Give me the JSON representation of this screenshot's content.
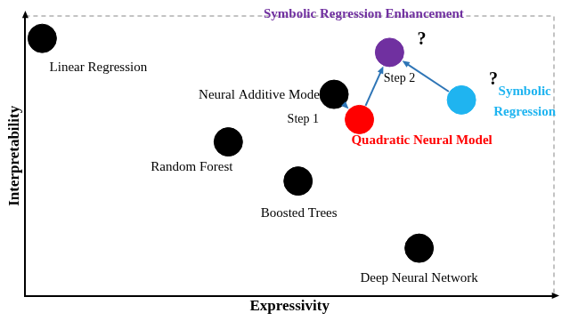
{
  "chart_data": {
    "type": "scatter",
    "xlabel": "Expressivity",
    "ylabel": "Interpretability",
    "xlim": [
      0,
      10
    ],
    "ylim": [
      0,
      10
    ],
    "tick_labels": false,
    "grid": false,
    "points": [
      {
        "label": "Linear Regression",
        "x": 0.32,
        "y": 9.2,
        "color": "#000000"
      },
      {
        "label": "Neural Additive Model",
        "x": 5.84,
        "y": 7.2,
        "color": "#000000"
      },
      {
        "label": "Random Forest",
        "x": 3.84,
        "y": 5.5,
        "color": "#000000"
      },
      {
        "label": "Boosted Trees",
        "x": 5.16,
        "y": 4.1,
        "color": "#000000"
      },
      {
        "label": "Deep Neural Network",
        "x": 7.45,
        "y": 1.7,
        "color": "#000000"
      },
      {
        "label": "Quadratic Neural Model",
        "x": 6.32,
        "y": 6.3,
        "color": "#ff0000"
      },
      {
        "label": "Symbolic Regression",
        "x": 8.25,
        "y": 7.0,
        "color": "#1fb4f0"
      },
      {
        "label": "Symbolic Regression Enhancement",
        "x": 6.89,
        "y": 8.7,
        "color": "#7030a0"
      }
    ],
    "arrows": [
      {
        "from": "Neural Additive Model",
        "to": "Quadratic Neural Model",
        "label": "Step 1"
      },
      {
        "from": "Quadratic Neural Model",
        "to": "Symbolic Regression Enhancement",
        "label": "Step 2"
      },
      {
        "from": "Symbolic Regression",
        "to": "Symbolic Regression Enhancement"
      }
    ],
    "annotations": [
      {
        "text": "?",
        "point": "Symbolic Regression Enhancement"
      },
      {
        "text": "?",
        "point": "Symbolic Regression"
      }
    ]
  }
}
